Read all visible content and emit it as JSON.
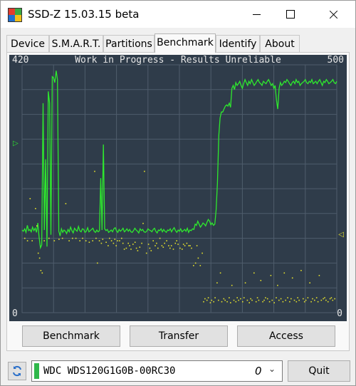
{
  "window": {
    "title": "SSD-Z 15.03.15 beta"
  },
  "tabs": [
    {
      "label": "Device"
    },
    {
      "label": "S.M.A.R.T."
    },
    {
      "label": "Partitions"
    },
    {
      "label": "Benchmark",
      "active": true
    },
    {
      "label": "Identify"
    },
    {
      "label": "About"
    }
  ],
  "chart_data": {
    "type": "line",
    "title": "Work in Progress - Results Unreliable",
    "left_axis": {
      "max_label": "420",
      "min_label": "0",
      "range": [
        0,
        420
      ]
    },
    "right_axis": {
      "max_label": "500",
      "min_label": "0",
      "range": [
        0,
        500
      ]
    },
    "grid": true,
    "background_color": "#2f3c4a",
    "grid_color": "#4f5d6c",
    "series": [
      {
        "color": "#2ee82e",
        "axis": "left",
        "values": [
          140,
          138,
          142,
          136,
          148,
          139,
          141,
          137,
          145,
          139,
          143,
          136,
          152,
          128,
          110,
          115,
          355,
          140,
          260,
          112,
          375,
          355,
          132,
          400,
          398,
          390,
          410,
          395,
          138,
          130,
          142,
          136,
          140,
          138,
          134,
          141,
          137,
          145,
          139,
          135,
          143,
          140,
          138,
          146,
          139,
          137,
          142,
          141,
          136,
          138,
          144,
          137,
          139,
          141,
          143,
          138,
          136,
          140,
          137,
          139,
          228,
          140,
          285,
          142,
          139,
          141,
          136,
          138,
          140,
          137,
          142,
          144,
          139,
          136,
          141,
          138,
          140,
          143,
          137,
          139,
          142,
          138,
          141,
          137,
          136,
          139,
          143,
          140,
          138,
          135,
          142,
          139,
          141,
          137,
          136,
          138,
          142,
          140,
          139,
          137,
          141,
          143,
          138,
          135,
          140,
          139,
          142,
          137,
          141,
          138,
          136,
          140,
          139,
          142,
          137,
          141,
          144,
          139,
          136,
          140,
          138,
          142,
          137,
          139,
          141,
          138,
          143,
          136,
          140,
          139,
          142,
          141,
          150,
          148,
          155,
          150,
          145,
          148,
          152,
          150,
          147,
          153,
          158,
          155,
          149,
          152,
          148,
          150,
          175,
          220,
          300,
          330,
          340,
          340,
          345,
          350,
          352,
          350,
          355,
          348,
          380,
          385,
          378,
          390,
          385,
          388,
          392,
          385,
          380,
          388,
          395,
          390,
          385,
          392,
          388,
          395,
          390,
          385,
          388,
          392,
          395,
          390,
          388,
          385,
          392,
          390,
          388,
          392,
          395,
          390,
          385,
          388,
          380,
          385,
          360,
          345,
          380,
          390,
          385,
          388,
          392,
          390,
          395,
          392,
          388,
          385,
          390,
          392,
          388,
          395,
          390,
          392,
          385,
          388,
          390,
          392,
          395,
          390,
          388,
          392,
          390,
          395,
          388,
          390,
          392,
          388,
          392,
          395,
          390,
          385,
          392,
          390,
          395,
          392,
          388,
          390,
          392,
          395,
          390,
          388,
          392
        ]
      },
      {
        "color": "#e4e02c",
        "axis": "right",
        "points": [
          [
            4,
            150
          ],
          [
            8,
            145
          ],
          [
            12,
            230
          ],
          [
            15,
            145
          ],
          [
            20,
            210
          ],
          [
            22,
            175
          ],
          [
            24,
            120
          ],
          [
            26,
            110
          ],
          [
            28,
            85
          ],
          [
            30,
            80
          ],
          [
            33,
            145
          ],
          [
            40,
            150
          ],
          [
            48,
            145
          ],
          [
            55,
            148
          ],
          [
            60,
            150
          ],
          [
            65,
            220
          ],
          [
            70,
            145
          ],
          [
            75,
            150
          ],
          [
            80,
            150
          ],
          [
            86,
            145
          ],
          [
            90,
            150
          ],
          [
            95,
            145
          ],
          [
            100,
            142
          ],
          [
            105,
            145
          ],
          [
            108,
            285
          ],
          [
            110,
            150
          ],
          [
            112,
            100
          ],
          [
            115,
            145
          ],
          [
            118,
            140
          ],
          [
            120,
            148
          ],
          [
            125,
            142
          ],
          [
            128,
            135
          ],
          [
            130,
            150
          ],
          [
            133,
            145
          ],
          [
            136,
            140
          ],
          [
            138,
            148
          ],
          [
            140,
            135
          ],
          [
            142,
            145
          ],
          [
            145,
            145
          ],
          [
            148,
            150
          ],
          [
            150,
            140
          ],
          [
            152,
            128
          ],
          [
            155,
            130
          ],
          [
            158,
            140
          ],
          [
            160,
            135
          ],
          [
            162,
            128
          ],
          [
            165,
            138
          ],
          [
            168,
            142
          ],
          [
            170,
            130
          ],
          [
            172,
            125
          ],
          [
            175,
            132
          ],
          [
            178,
            140
          ],
          [
            180,
            180
          ],
          [
            182,
            285
          ],
          [
            185,
            120
          ],
          [
            188,
            138
          ],
          [
            190,
            130
          ],
          [
            192,
            125
          ],
          [
            195,
            145
          ],
          [
            198,
            135
          ],
          [
            200,
            140
          ],
          [
            202,
            130
          ],
          [
            205,
            150
          ],
          [
            208,
            135
          ],
          [
            210,
            132
          ],
          [
            212,
            140
          ],
          [
            215,
            145
          ],
          [
            218,
            135
          ],
          [
            220,
            130
          ],
          [
            222,
            135
          ],
          [
            225,
            128
          ],
          [
            228,
            140
          ],
          [
            230,
            145
          ],
          [
            232,
            138
          ],
          [
            235,
            130
          ],
          [
            238,
            128
          ],
          [
            240,
            138
          ],
          [
            242,
            135
          ],
          [
            245,
            140
          ],
          [
            248,
            135
          ],
          [
            250,
            135
          ],
          [
            252,
            130
          ],
          [
            255,
            95
          ],
          [
            258,
            100
          ],
          [
            260,
            135
          ],
          [
            262,
            110
          ],
          [
            265,
            95
          ],
          [
            268,
            120
          ],
          [
            270,
            22
          ],
          [
            272,
            28
          ],
          [
            275,
            25
          ],
          [
            277,
            30
          ],
          [
            280,
            20
          ],
          [
            282,
            25
          ],
          [
            285,
            22
          ],
          [
            287,
            30
          ],
          [
            290,
            60
          ],
          [
            292,
            25
          ],
          [
            295,
            80
          ],
          [
            297,
            22
          ],
          [
            300,
            28
          ],
          [
            302,
            25
          ],
          [
            305,
            22
          ],
          [
            308,
            30
          ],
          [
            310,
            20
          ],
          [
            312,
            55
          ],
          [
            315,
            25
          ],
          [
            318,
            22
          ],
          [
            320,
            30
          ],
          [
            322,
            25
          ],
          [
            325,
            28
          ],
          [
            328,
            22
          ],
          [
            330,
            30
          ],
          [
            332,
            60
          ],
          [
            335,
            25
          ],
          [
            338,
            20
          ],
          [
            340,
            28
          ],
          [
            342,
            25
          ],
          [
            345,
            80
          ],
          [
            348,
            22
          ],
          [
            350,
            30
          ],
          [
            352,
            25
          ],
          [
            355,
            65
          ],
          [
            358,
            22
          ],
          [
            360,
            25
          ],
          [
            362,
            30
          ],
          [
            365,
            28
          ],
          [
            368,
            22
          ],
          [
            370,
            75
          ],
          [
            372,
            25
          ],
          [
            375,
            20
          ],
          [
            378,
            30
          ],
          [
            380,
            55
          ],
          [
            382,
            25
          ],
          [
            385,
            28
          ],
          [
            388,
            22
          ],
          [
            390,
            80
          ],
          [
            392,
            25
          ],
          [
            395,
            30
          ],
          [
            398,
            22
          ],
          [
            400,
            28
          ],
          [
            402,
            70
          ],
          [
            405,
            25
          ],
          [
            408,
            22
          ],
          [
            410,
            30
          ],
          [
            412,
            25
          ],
          [
            415,
            85
          ],
          [
            418,
            28
          ],
          [
            420,
            22
          ],
          [
            422,
            25
          ],
          [
            425,
            30
          ],
          [
            428,
            60
          ],
          [
            430,
            22
          ],
          [
            432,
            28
          ],
          [
            435,
            25
          ],
          [
            438,
            30
          ],
          [
            440,
            22
          ],
          [
            442,
            75
          ],
          [
            445,
            25
          ],
          [
            448,
            28
          ],
          [
            450,
            30
          ],
          [
            452,
            25
          ],
          [
            455,
            22
          ],
          [
            458,
            28
          ],
          [
            460,
            30
          ],
          [
            462,
            25
          ],
          [
            465,
            28
          ]
        ]
      }
    ]
  },
  "buttons": {
    "benchmark": "Benchmark",
    "transfer": "Transfer",
    "access": "Access",
    "quit": "Quit"
  },
  "drive": {
    "name": "WDC WDS120G1G0B-00RC30",
    "index": "0",
    "status_color": "#2fb84a"
  },
  "icons": {
    "refresh": "refresh-icon",
    "left_marker": "triangle-right-icon",
    "right_marker": "triangle-left-icon"
  }
}
